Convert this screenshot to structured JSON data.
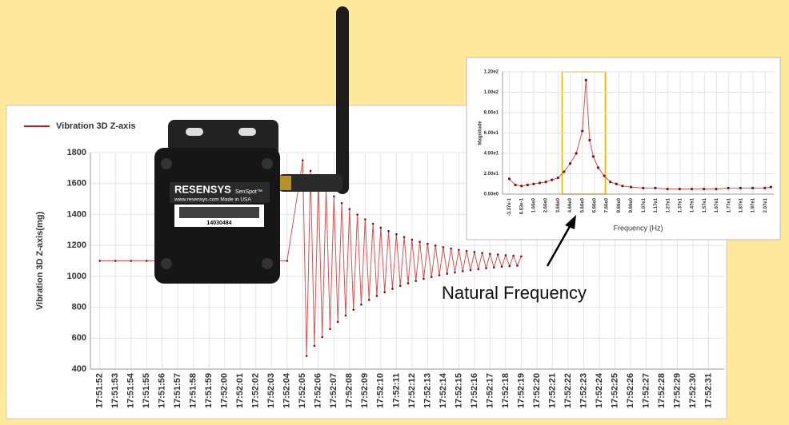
{
  "chart_data": [
    {
      "type": "line",
      "y_label": "Vibration 3D Z-axis(mg)",
      "series": [
        {
          "name": "Vibration 3D Z-axis",
          "color": "#d01818",
          "x": [
            0,
            1,
            2,
            3,
            4,
            5,
            6,
            7,
            8,
            9,
            10,
            11,
            12,
            13,
            13.25,
            13.5,
            13.75,
            14,
            14.25,
            14.5,
            14.75,
            15,
            15.25,
            15.5,
            15.75,
            16,
            16.25,
            16.5,
            16.75,
            17,
            17.25,
            17.5,
            17.75,
            18,
            18.25,
            18.5,
            18.75,
            19,
            19.25,
            19.5,
            19.75,
            20,
            20.25,
            20.5,
            20.75,
            21,
            21.25,
            21.5,
            21.75,
            22,
            22.25,
            22.5,
            22.75,
            23,
            23.25,
            23.5,
            23.75,
            24,
            24.25,
            24.5,
            24.75,
            25,
            25.25,
            25.5,
            25.75,
            26,
            26.25,
            26.5,
            26.75,
            27
          ],
          "values": [
            1100,
            1100,
            1100,
            1100,
            1100,
            1100,
            1100,
            1100,
            1100,
            1100,
            1100,
            1100,
            1100,
            1750,
            485,
            1682,
            550,
            1621,
            607,
            1566,
            659,
            1517,
            705,
            1473,
            747,
            1434,
            784,
            1399,
            817,
            1368,
            847,
            1340,
            873,
            1314,
            897,
            1292,
            919,
            1272,
            938,
            1254,
            955,
            1237,
            970,
            1223,
            984,
            1210,
            996,
            1199,
            1007,
            1188,
            1017,
            1179,
            1025,
            1171,
            1033,
            1163,
            1040,
            1157,
            1046,
            1151,
            1052,
            1145,
            1057,
            1141,
            1062,
            1136,
            1066,
            1133,
            1069,
            1129
          ]
        }
      ],
      "xlim": [
        -0.6,
        40
      ],
      "xticks": [
        {
          "value": 0,
          "label": "17:51:52"
        },
        {
          "value": 1,
          "label": "17:51:53"
        },
        {
          "value": 2,
          "label": "17:51:54"
        },
        {
          "value": 3,
          "label": "17:51:55"
        },
        {
          "value": 4,
          "label": "17:51:56"
        },
        {
          "value": 5,
          "label": "17:51:57"
        },
        {
          "value": 6,
          "label": "17:51:58"
        },
        {
          "value": 7,
          "label": "17:51:59"
        },
        {
          "value": 8,
          "label": "17:52:00"
        },
        {
          "value": 9,
          "label": "17:52:01"
        },
        {
          "value": 10,
          "label": "17:52:02"
        },
        {
          "value": 11,
          "label": "17:52:03"
        },
        {
          "value": 12,
          "label": "17:52:04"
        },
        {
          "value": 13,
          "label": "17:52:05"
        },
        {
          "value": 14,
          "label": "17:52:06"
        },
        {
          "value": 15,
          "label": "17:52:07"
        },
        {
          "value": 16,
          "label": "17:52:08"
        },
        {
          "value": 17,
          "label": "17:52:09"
        },
        {
          "value": 18,
          "label": "17:52:10"
        },
        {
          "value": 19,
          "label": "17:52:11"
        },
        {
          "value": 20,
          "label": "17:52:12"
        },
        {
          "value": 21,
          "label": "17:52:13"
        },
        {
          "value": 22,
          "label": "17:52:14"
        },
        {
          "value": 23,
          "label": "17:52:15"
        },
        {
          "value": 24,
          "label": "17:52:16"
        },
        {
          "value": 25,
          "label": "17:52:17"
        },
        {
          "value": 26,
          "label": "17:52:18"
        },
        {
          "value": 27,
          "label": "17:52:19"
        },
        {
          "value": 28,
          "label": "17:52:20"
        },
        {
          "value": 29,
          "label": "17:52:21"
        },
        {
          "value": 30,
          "label": "17:52:22"
        },
        {
          "value": 31,
          "label": "17:52:23"
        },
        {
          "value": 32,
          "label": "17:52:24"
        },
        {
          "value": 33,
          "label": "17:52:25"
        },
        {
          "value": 34,
          "label": "17:52:26"
        },
        {
          "value": 35,
          "label": "17:52:27"
        },
        {
          "value": 36,
          "label": "17:52:28"
        },
        {
          "value": 37,
          "label": "17:52:29"
        },
        {
          "value": 38,
          "label": "17:52:30"
        },
        {
          "value": 39,
          "label": "17:52:31"
        }
      ],
      "ylim": [
        400,
        1800
      ],
      "yticks": [
        400,
        600,
        800,
        1000,
        1200,
        1400,
        1600,
        1800
      ],
      "grid": true
    },
    {
      "type": "line",
      "x_label": "Frequency (Hz)",
      "y_label": "Magnitude",
      "annotation": "Natural Frequency",
      "highlight": {
        "xlim": [
          4.0,
          7.55
        ],
        "color": "#f0b000"
      },
      "series": [
        {
          "color": "#d01818",
          "x": [
            -0.34,
            0.16,
            0.66,
            1.16,
            1.66,
            2.16,
            2.66,
            3.16,
            3.66,
            4.16,
            4.66,
            5.16,
            5.66,
            5.96,
            6.26,
            6.56,
            6.96,
            7.46,
            7.96,
            8.46,
            8.96,
            9.66,
            10.66,
            11.66,
            12.66,
            13.66,
            14.66,
            15.66,
            16.66,
            17.66,
            18.66,
            19.66,
            20.66,
            21.16
          ],
          "values": [
            15,
            9,
            8,
            9,
            10,
            11,
            12,
            14,
            16,
            22,
            30,
            40,
            62,
            112,
            53,
            37,
            26,
            18,
            12,
            10,
            8,
            7,
            6,
            6,
            5,
            5,
            5,
            5,
            5,
            6,
            6,
            6,
            6,
            7
          ]
        }
      ],
      "xlim": [
        -0.9,
        21.4
      ],
      "xticks": [
        {
          "value": -0.337,
          "label": "-3.37e-1"
        },
        {
          "value": 0.663,
          "label": "6.63e-1"
        },
        {
          "value": 1.66,
          "label": "1.66e0"
        },
        {
          "value": 2.66,
          "label": "2.66e0"
        },
        {
          "value": 3.66,
          "label": "3.66e0"
        },
        {
          "value": 4.66,
          "label": "4.66e0"
        },
        {
          "value": 5.66,
          "label": "5.66e0"
        },
        {
          "value": 6.66,
          "label": "6.66e0"
        },
        {
          "value": 7.66,
          "label": "7.66e0"
        },
        {
          "value": 8.66,
          "label": "8.66e0"
        },
        {
          "value": 9.66,
          "label": "9.66e0"
        },
        {
          "value": 10.7,
          "label": "1.07e1"
        },
        {
          "value": 11.7,
          "label": "1.17e1"
        },
        {
          "value": 12.7,
          "label": "1.27e1"
        },
        {
          "value": 13.7,
          "label": "1.37e1"
        },
        {
          "value": 14.7,
          "label": "1.47e1"
        },
        {
          "value": 15.7,
          "label": "1.57e1"
        },
        {
          "value": 16.7,
          "label": "1.67e1"
        },
        {
          "value": 17.7,
          "label": "1.77e1"
        },
        {
          "value": 18.7,
          "label": "1.87e1"
        },
        {
          "value": 19.7,
          "label": "1.97e1"
        },
        {
          "value": 20.7,
          "label": "2.07e1"
        }
      ],
      "ylim": [
        0,
        120
      ],
      "yticks": [
        {
          "value": 0,
          "label": "0.00e0"
        },
        {
          "value": 20,
          "label": "2.00e1"
        },
        {
          "value": 40,
          "label": "4.00e1"
        },
        {
          "value": 60,
          "label": "6.00e1"
        },
        {
          "value": 80,
          "label": "8.00e1"
        },
        {
          "value": 100,
          "label": "1.00e2"
        },
        {
          "value": 120,
          "label": "1.20e2"
        }
      ],
      "grid": true
    }
  ],
  "photo": {
    "brand": "RESENSYS",
    "model": "SenSpot™",
    "site": "www.resensys.com Made in USA",
    "serial": "14030484"
  }
}
